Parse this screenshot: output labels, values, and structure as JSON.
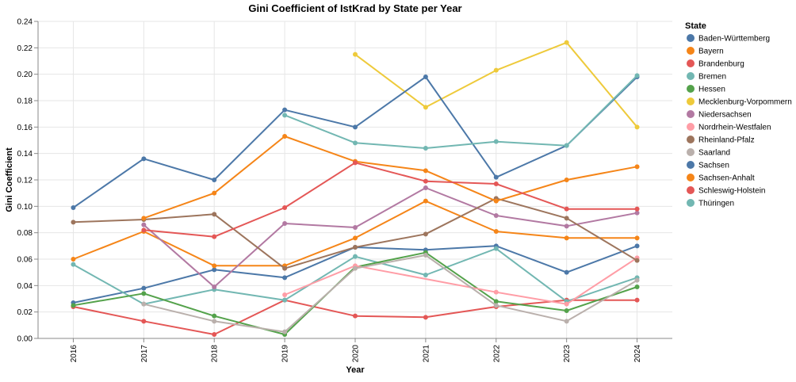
{
  "chart_data": {
    "type": "line",
    "title": "Gini Coefficient of IstKrad by State per Year",
    "xlabel": "Year",
    "ylabel": "Gini Coefficient",
    "x": [
      "2016",
      "2017",
      "2018",
      "2019",
      "2020",
      "2021",
      "2022",
      "2023",
      "2024"
    ],
    "ylim": [
      0,
      0.24
    ],
    "yticks": [
      "0.00",
      "0.02",
      "0.04",
      "0.06",
      "0.08",
      "0.10",
      "0.12",
      "0.14",
      "0.16",
      "0.18",
      "0.20",
      "0.22",
      "0.24"
    ],
    "grid": true,
    "legend": {
      "title": "State",
      "position": "right"
    },
    "series": [
      {
        "name": "Baden-Württemberg",
        "color": "#4c78a8",
        "values": [
          0.027,
          0.038,
          0.052,
          0.046,
          0.069,
          0.067,
          0.07,
          0.05,
          0.07
        ]
      },
      {
        "name": "Bayern",
        "color": "#f58518",
        "values": [
          0.06,
          0.081,
          0.055,
          0.055,
          0.076,
          0.104,
          0.081,
          0.076,
          0.076
        ]
      },
      {
        "name": "Brandenburg",
        "color": "#e45756",
        "values": [
          0.024,
          0.013,
          0.003,
          0.029,
          0.017,
          0.016,
          0.024,
          0.029,
          0.029
        ]
      },
      {
        "name": "Bremen",
        "color": "#72b7b2",
        "values": [
          0.056,
          0.026,
          0.037,
          0.029,
          0.062,
          0.048,
          0.068,
          0.028,
          0.046
        ]
      },
      {
        "name": "Hessen",
        "color": "#54a24b",
        "values": [
          0.025,
          0.034,
          0.017,
          0.003,
          0.054,
          0.065,
          0.028,
          0.021,
          0.039
        ]
      },
      {
        "name": "Mecklenburg-Vorpommern",
        "color": "#eeca3b",
        "values": [
          null,
          null,
          null,
          null,
          0.215,
          0.175,
          0.203,
          0.224,
          0.16
        ]
      },
      {
        "name": "Niedersachsen",
        "color": "#b279a2",
        "values": [
          null,
          0.086,
          0.039,
          0.087,
          0.084,
          0.114,
          0.093,
          0.085,
          0.095
        ]
      },
      {
        "name": "Nordrhein-Westfalen",
        "color": "#ff9da6",
        "values": [
          null,
          null,
          null,
          0.033,
          0.055,
          null,
          0.035,
          0.026,
          0.061
        ]
      },
      {
        "name": "Rheinland-Pfalz",
        "color": "#9d755d",
        "values": [
          0.088,
          0.09,
          0.094,
          0.053,
          0.069,
          0.079,
          0.106,
          0.091,
          0.059
        ]
      },
      {
        "name": "Saarland",
        "color": "#bab0ac",
        "values": [
          null,
          0.026,
          0.013,
          0.005,
          0.053,
          0.063,
          0.025,
          0.013,
          0.044
        ]
      },
      {
        "name": "Sachsen",
        "color": "#4c78a8",
        "values": [
          0.099,
          0.136,
          0.12,
          0.173,
          0.16,
          0.198,
          0.122,
          0.146,
          0.198
        ]
      },
      {
        "name": "Sachsen-Anhalt",
        "color": "#f58518",
        "values": [
          null,
          0.091,
          0.11,
          0.153,
          0.134,
          0.127,
          0.104,
          0.12,
          0.13
        ]
      },
      {
        "name": "Schleswig-Holstein",
        "color": "#e45756",
        "values": [
          null,
          0.082,
          0.077,
          0.099,
          0.133,
          0.119,
          0.117,
          0.098,
          0.098
        ]
      },
      {
        "name": "Thüringen",
        "color": "#72b7b2",
        "values": [
          null,
          null,
          null,
          0.169,
          0.148,
          0.144,
          0.149,
          0.146,
          0.199
        ]
      }
    ]
  }
}
